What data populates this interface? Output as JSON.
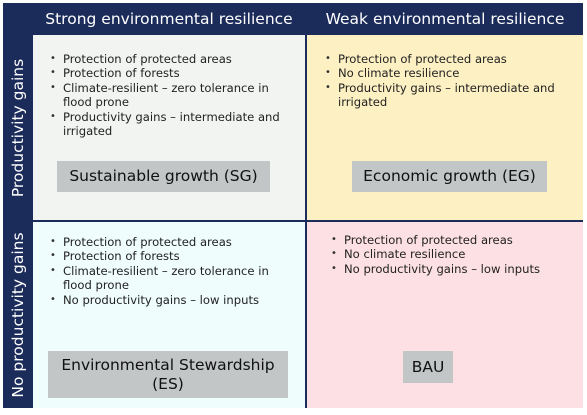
{
  "columns": {
    "strong": "Strong environmental resilience",
    "weak": "Weak environmental resilience"
  },
  "rows": {
    "gains": "Productivity gains",
    "no_gains": "No productivity gains"
  },
  "quadrants": {
    "sg": {
      "color": "#f1f4f1",
      "bullets": [
        "Protection of protected areas",
        "Protection of forests",
        "Climate-resilient – zero tolerance in flood prone",
        "Productivity gains – intermediate and irrigated"
      ],
      "label": "Sustainable growth (SG)"
    },
    "eg": {
      "color": "#fdf0c3",
      "bullets": [
        "Protection of protected areas",
        "No climate resilience",
        "Productivity gains – intermediate and irrigated"
      ],
      "label": "Economic growth (EG)"
    },
    "es": {
      "color": "#f0fdfd",
      "bullets": [
        "Protection of protected areas",
        "Protection of forests",
        "Climate-resilient – zero tolerance in flood prone",
        "No productivity gains – low inputs"
      ],
      "label_line1": "Environmental Stewardship",
      "label_line2": "(ES)"
    },
    "bau": {
      "color": "#fde0e3",
      "bullets": [
        "Protection of protected areas",
        "No climate resilience",
        "No productivity gains – low inputs"
      ],
      "label": "BAU"
    }
  }
}
